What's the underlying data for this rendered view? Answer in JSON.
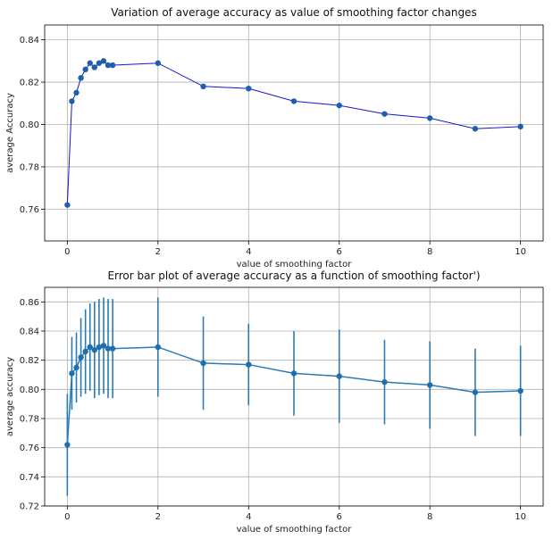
{
  "chart_data": [
    {
      "type": "line",
      "title": "Variation of average accuracy as value of smoothing factor changes",
      "xlabel": "value of smoothing factor",
      "ylabel": "average Accuracy",
      "xlim": [
        -0.5,
        10.5
      ],
      "ylim": [
        0.745,
        0.847
      ],
      "xticks": [
        0,
        2,
        4,
        6,
        8,
        10
      ],
      "yticks": [
        0.76,
        0.78,
        0.8,
        0.82,
        0.84
      ],
      "grid": true,
      "line_color": "#1515d0",
      "marker_color": "#1f5fae",
      "x": [
        0,
        0.1,
        0.2,
        0.3,
        0.4,
        0.5,
        0.6,
        0.7,
        0.8,
        0.9,
        1.0,
        2,
        3,
        4,
        5,
        6,
        7,
        8,
        9,
        10
      ],
      "y": [
        0.762,
        0.811,
        0.815,
        0.822,
        0.826,
        0.829,
        0.827,
        0.829,
        0.83,
        0.828,
        0.828,
        0.829,
        0.818,
        0.817,
        0.811,
        0.809,
        0.805,
        0.803,
        0.798,
        0.799
      ]
    },
    {
      "type": "errorbar",
      "title": "Error bar plot of average accuracy as a function of smoothing factor')",
      "xlabel": "value of smoothing factor",
      "ylabel": "average accuracy",
      "xlim": [
        -0.5,
        10.5
      ],
      "ylim": [
        0.72,
        0.87
      ],
      "xticks": [
        0,
        2,
        4,
        6,
        8,
        10
      ],
      "yticks": [
        0.72,
        0.74,
        0.76,
        0.78,
        0.8,
        0.82,
        0.84,
        0.86
      ],
      "grid": true,
      "line_color": "#2a7bb3",
      "marker_color": "#1f6fb0",
      "x": [
        0,
        0.1,
        0.2,
        0.3,
        0.4,
        0.5,
        0.6,
        0.7,
        0.8,
        0.9,
        1.0,
        2,
        3,
        4,
        5,
        6,
        7,
        8,
        9,
        10
      ],
      "y": [
        0.762,
        0.811,
        0.815,
        0.822,
        0.826,
        0.829,
        0.827,
        0.829,
        0.83,
        0.828,
        0.828,
        0.829,
        0.818,
        0.817,
        0.811,
        0.809,
        0.805,
        0.803,
        0.798,
        0.799
      ],
      "yerr": [
        0.035,
        0.025,
        0.024,
        0.027,
        0.029,
        0.03,
        0.033,
        0.033,
        0.033,
        0.034,
        0.034,
        0.034,
        0.032,
        0.028,
        0.029,
        0.032,
        0.029,
        0.03,
        0.03,
        0.031
      ]
    }
  ]
}
